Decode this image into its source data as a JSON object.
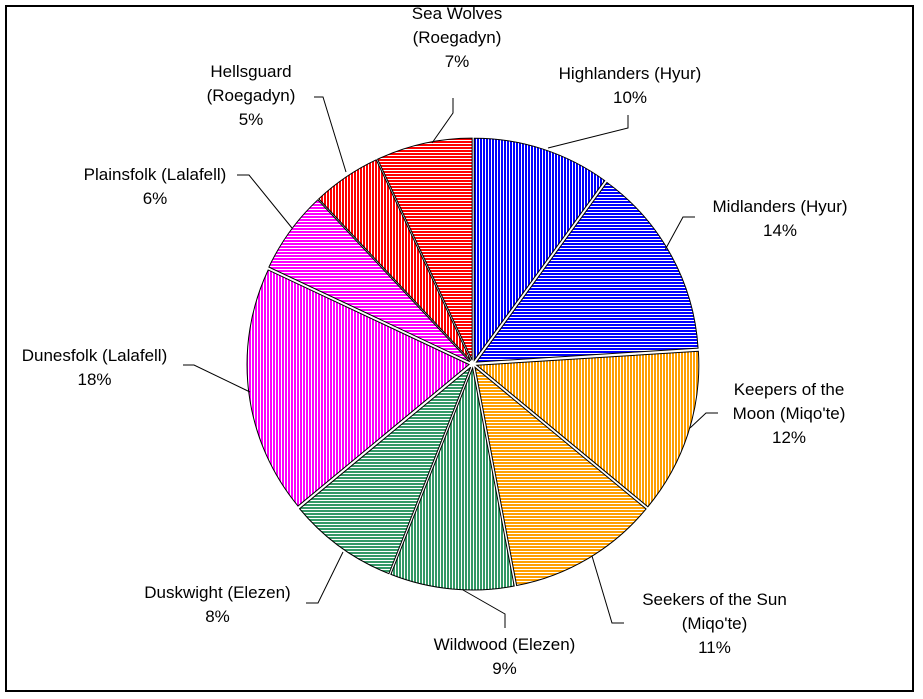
{
  "chart_data": {
    "type": "pie",
    "title": "",
    "categories": [
      "Highlanders (Hyur)",
      "Midlanders (Hyur)",
      "Keepers of the Moon (Miqo'te)",
      "Seekers of the Sun (Miqo'te)",
      "Wildwood (Elezen)",
      "Duskwight (Elezen)",
      "Dunesfolk (Lalafell)",
      "Plainsfolk (Lalafell)",
      "Hellsguard (Roegadyn)",
      "Sea Wolves (Roegadyn)"
    ],
    "values": [
      10,
      14,
      12,
      11,
      9,
      8,
      18,
      6,
      5,
      7
    ],
    "unit": "%",
    "start_angle": "12 o'clock",
    "direction": "clockwise",
    "exploded": true,
    "legend": "none (data labels with leader lines)"
  },
  "colors": {
    "hyur": "#0000FF",
    "miqote": "#FFA000",
    "elezen": "#339966",
    "lalafell": "#FF00FF",
    "roegadyn": "#FF0000"
  },
  "slices": [
    {
      "name": "Highlanders (Hyur)",
      "value": 10,
      "color": "#0000FF",
      "stripe": "vertical"
    },
    {
      "name": "Midlanders (Hyur)",
      "value": 14,
      "color": "#0000FF",
      "stripe": "horizontal"
    },
    {
      "name": "Keepers of the Moon (Miqo'te)",
      "value": 12,
      "color": "#FFA000",
      "stripe": "vertical"
    },
    {
      "name": "Seekers of the Sun (Miqo'te)",
      "value": 11,
      "color": "#FFA000",
      "stripe": "horizontal"
    },
    {
      "name": "Wildwood (Elezen)",
      "value": 9,
      "color": "#339966",
      "stripe": "vertical"
    },
    {
      "name": "Duskwight (Elezen)",
      "value": 8,
      "color": "#339966",
      "stripe": "horizontal"
    },
    {
      "name": "Dunesfolk (Lalafell)",
      "value": 18,
      "color": "#FF00FF",
      "stripe": "vertical"
    },
    {
      "name": "Plainsfolk (Lalafell)",
      "value": 6,
      "color": "#FF00FF",
      "stripe": "horizontal"
    },
    {
      "name": "Hellsguard (Roegadyn)",
      "value": 5,
      "color": "#FF0000",
      "stripe": "vertical"
    },
    {
      "name": "Sea Wolves (Roegadyn)",
      "value": 7,
      "color": "#FF0000",
      "stripe": "horizontal"
    }
  ],
  "labels": {
    "highlanders": {
      "line1": "Highlanders (Hyur)",
      "pct": "10%"
    },
    "midlanders": {
      "line1": "Midlanders (Hyur)",
      "pct": "14%"
    },
    "keepers": {
      "line1": "Keepers of the",
      "line2": "Moon (Miqo'te)",
      "pct": "12%"
    },
    "seekers": {
      "line1": "Seekers of the Sun",
      "line2": "(Miqo'te)",
      "pct": "11%"
    },
    "wildwood": {
      "line1": "Wildwood (Elezen)",
      "pct": "9%"
    },
    "duskwight": {
      "line1": "Duskwight (Elezen)",
      "pct": "8%"
    },
    "dunesfolk": {
      "line1": "Dunesfolk (Lalafell)",
      "pct": "18%"
    },
    "plainsfolk": {
      "line1": "Plainsfolk (Lalafell)",
      "pct": "6%"
    },
    "hellsguard": {
      "line1": "Hellsguard",
      "line2": "(Roegadyn)",
      "pct": "5%"
    },
    "seawolves": {
      "line1": "Sea Wolves",
      "line2": "(Roegadyn)",
      "pct": "7%"
    }
  }
}
